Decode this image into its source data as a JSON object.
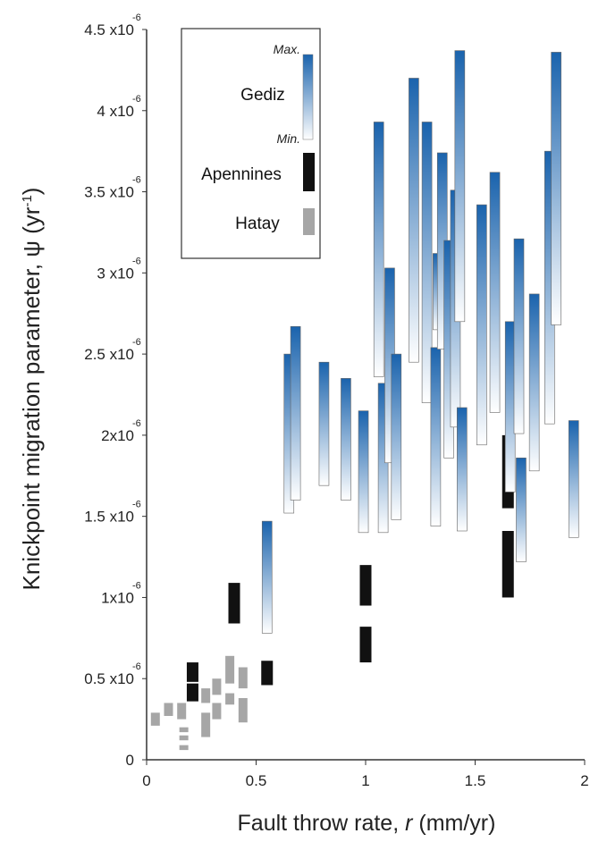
{
  "chart_data": {
    "type": "bar",
    "chart_style": "floating range bars (min-max) per catchment",
    "xlabel_prefix": "Fault throw rate, ",
    "xlabel_var": "r",
    "xlabel_suffix": " (mm/yr)",
    "ylabel_main": "Knickpoint  migration parameter, ψ (yr",
    "ylabel_sup": "-1",
    "ylabel_close": ")",
    "xlim": [
      0,
      2
    ],
    "ylim": [
      0,
      4.5
    ],
    "y_scale_note": "values x10^-6",
    "x_ticks": [
      {
        "value": 0,
        "label": "0"
      },
      {
        "value": 0.5,
        "label": "0.5"
      },
      {
        "value": 1,
        "label": "1"
      },
      {
        "value": 1.5,
        "label": "1.5"
      },
      {
        "value": 2,
        "label": "2"
      }
    ],
    "y_ticks": [
      {
        "value": 0,
        "label": "0",
        "exp": ""
      },
      {
        "value": 0.5,
        "label": "0.5 x10",
        "exp": "-6"
      },
      {
        "value": 1,
        "label": "1x10",
        "exp": "-6"
      },
      {
        "value": 1.5,
        "label": "1.5 x10",
        "exp": "-6"
      },
      {
        "value": 2,
        "label": "2x10",
        "exp": "-6"
      },
      {
        "value": 2.5,
        "label": "2.5 x10",
        "exp": "-6"
      },
      {
        "value": 3,
        "label": "3 x10",
        "exp": "-6"
      },
      {
        "value": 3.5,
        "label": "3.5 x10",
        "exp": "-6"
      },
      {
        "value": 4,
        "label": "4 x10",
        "exp": "-6"
      },
      {
        "value": 4.5,
        "label": "4.5 x10",
        "exp": "-6"
      }
    ],
    "legend": {
      "placement": "top-left",
      "entries": [
        {
          "name": "Gediz",
          "max_label": "Max.",
          "min_label": "Min."
        },
        {
          "name": "Apennines"
        },
        {
          "name": "Hatay"
        }
      ]
    },
    "colors": {
      "gediz_max": "#1a63ad",
      "gediz_min": "#ffffff",
      "apennines": "#111111",
      "hatay": "#a6a6a6"
    },
    "series": [
      {
        "name": "Gediz",
        "ranges": [
          {
            "x": 0.55,
            "min": 0.78,
            "max": 1.47
          },
          {
            "x": 0.65,
            "min": 1.52,
            "max": 2.5
          },
          {
            "x": 0.68,
            "min": 1.6,
            "max": 2.67
          },
          {
            "x": 0.81,
            "min": 1.69,
            "max": 2.45
          },
          {
            "x": 0.91,
            "min": 1.6,
            "max": 2.35
          },
          {
            "x": 0.99,
            "min": 1.4,
            "max": 2.15
          },
          {
            "x": 1.06,
            "min": 2.36,
            "max": 3.93
          },
          {
            "x": 1.08,
            "min": 1.4,
            "max": 2.32
          },
          {
            "x": 1.11,
            "min": 1.83,
            "max": 3.03
          },
          {
            "x": 1.14,
            "min": 1.48,
            "max": 2.5
          },
          {
            "x": 1.22,
            "min": 2.45,
            "max": 4.2
          },
          {
            "x": 1.28,
            "min": 2.2,
            "max": 3.93
          },
          {
            "x": 1.32,
            "min": 1.44,
            "max": 2.54
          },
          {
            "x": 1.33,
            "min": 2.65,
            "max": 3.12
          },
          {
            "x": 1.35,
            "min": 2.53,
            "max": 3.74
          },
          {
            "x": 1.38,
            "min": 1.86,
            "max": 3.2
          },
          {
            "x": 1.41,
            "min": 2.05,
            "max": 3.51
          },
          {
            "x": 1.43,
            "min": 2.7,
            "max": 4.37
          },
          {
            "x": 1.44,
            "min": 1.41,
            "max": 2.17
          },
          {
            "x": 1.53,
            "min": 1.94,
            "max": 3.42
          },
          {
            "x": 1.59,
            "min": 2.14,
            "max": 3.62
          },
          {
            "x": 1.66,
            "min": 1.65,
            "max": 2.7
          },
          {
            "x": 1.7,
            "min": 2.01,
            "max": 3.21
          },
          {
            "x": 1.71,
            "min": 1.22,
            "max": 1.86
          },
          {
            "x": 1.77,
            "min": 1.78,
            "max": 2.87
          },
          {
            "x": 1.84,
            "min": 2.07,
            "max": 3.75
          },
          {
            "x": 1.87,
            "min": 2.68,
            "max": 4.36
          },
          {
            "x": 1.95,
            "min": 1.37,
            "max": 2.09
          }
        ]
      },
      {
        "name": "Apennines",
        "ranges": [
          {
            "x": 0.21,
            "min": 0.48,
            "max": 0.6
          },
          {
            "x": 0.21,
            "min": 0.36,
            "max": 0.47
          },
          {
            "x": 0.4,
            "min": 0.84,
            "max": 1.09
          },
          {
            "x": 0.55,
            "min": 0.46,
            "max": 0.61
          },
          {
            "x": 1.0,
            "min": 0.95,
            "max": 1.2
          },
          {
            "x": 1.0,
            "min": 0.6,
            "max": 0.82
          },
          {
            "x": 1.65,
            "min": 1.55,
            "max": 2.0
          },
          {
            "x": 1.65,
            "min": 1.0,
            "max": 1.41
          }
        ]
      },
      {
        "name": "Hatay",
        "ranges": [
          {
            "x": 0.04,
            "min": 0.21,
            "max": 0.29
          },
          {
            "x": 0.1,
            "min": 0.27,
            "max": 0.35
          },
          {
            "x": 0.16,
            "min": 0.25,
            "max": 0.35
          },
          {
            "x": 0.17,
            "min": 0.17,
            "max": 0.2
          },
          {
            "x": 0.17,
            "min": 0.12,
            "max": 0.15
          },
          {
            "x": 0.17,
            "min": 0.06,
            "max": 0.09
          },
          {
            "x": 0.27,
            "min": 0.35,
            "max": 0.44
          },
          {
            "x": 0.27,
            "min": 0.14,
            "max": 0.29
          },
          {
            "x": 0.32,
            "min": 0.4,
            "max": 0.5
          },
          {
            "x": 0.32,
            "min": 0.25,
            "max": 0.35
          },
          {
            "x": 0.38,
            "min": 0.47,
            "max": 0.64
          },
          {
            "x": 0.38,
            "min": 0.34,
            "max": 0.41
          },
          {
            "x": 0.44,
            "min": 0.44,
            "max": 0.57
          },
          {
            "x": 0.44,
            "min": 0.23,
            "max": 0.38
          }
        ]
      }
    ]
  }
}
